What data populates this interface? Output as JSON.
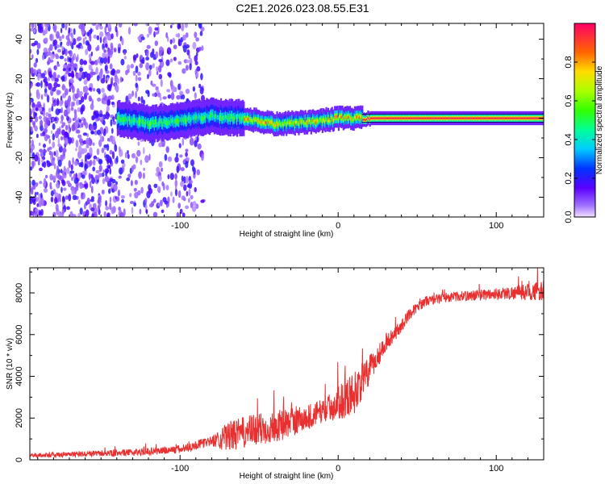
{
  "title": "C2E1.2026.023.08.55.E31",
  "chart_data": [
    {
      "type": "heatmap",
      "xlabel": "Height of straight line (km)",
      "ylabel": "Frequency (Hz)",
      "xlim": [
        -195,
        130
      ],
      "ylim": [
        -50,
        48
      ],
      "x_ticks": [
        -100,
        0,
        100
      ],
      "x_tick_labels": [
        "-100",
        "0",
        "100"
      ],
      "y_ticks": [
        -40,
        -20,
        0,
        20,
        40
      ],
      "y_tick_labels": [
        "-40",
        "-20",
        "0",
        "20",
        "40"
      ],
      "grid": false,
      "colorbar": {
        "label": "Normalized spectral amplitude",
        "range": [
          0,
          1
        ],
        "ticks": [
          0.0,
          0.2,
          0.4,
          0.6,
          0.8
        ],
        "tick_labels": [
          "0.0",
          "0.2",
          "0.4",
          "0.6",
          "0.8"
        ],
        "colormap": "rainbow"
      },
      "features": {
        "noise_region_x": [
          -195,
          -85
        ],
        "signal_start_x": -140,
        "tone_center_hz": [
          [
            -140,
            0
          ],
          [
            -120,
            -3
          ],
          [
            -100,
            -1
          ],
          [
            -80,
            1
          ],
          [
            -60,
            0
          ],
          [
            -40,
            -3
          ],
          [
            -20,
            -2
          ],
          [
            0,
            0
          ],
          [
            20,
            0
          ],
          [
            130,
            0
          ]
        ]
      }
    },
    {
      "type": "line",
      "xlabel": "Height of straight line (km)",
      "ylabel": "SNR (10 * v/v)",
      "xlim": [
        -195,
        130
      ],
      "ylim": [
        0,
        9200
      ],
      "x_ticks": [
        -100,
        0,
        100
      ],
      "x_tick_labels": [
        "-100",
        "0",
        "100"
      ],
      "y_ticks": [
        0,
        2000,
        4000,
        6000,
        8000
      ],
      "y_tick_labels": [
        "0",
        "2000",
        "4000",
        "6000",
        "8000"
      ],
      "grid": false,
      "color": "#e83030",
      "trend": {
        "x": [
          -195,
          -130,
          -100,
          -80,
          -60,
          -40,
          -20,
          0,
          10,
          20,
          30,
          40,
          45,
          55,
          70,
          90,
          110,
          130
        ],
        "y": [
          200,
          350,
          500,
          900,
          1300,
          1600,
          2000,
          2700,
          3200,
          4300,
          5600,
          6400,
          7000,
          7600,
          7800,
          7900,
          8000,
          8100
        ]
      },
      "noise_amplitude": {
        "x": [
          -195,
          -130,
          -80,
          -70,
          -50,
          -30,
          -10,
          10,
          30,
          50,
          80,
          110,
          130
        ],
        "y": [
          120,
          200,
          300,
          900,
          1000,
          900,
          700,
          1300,
          500,
          300,
          300,
          400,
          600
        ]
      }
    }
  ]
}
